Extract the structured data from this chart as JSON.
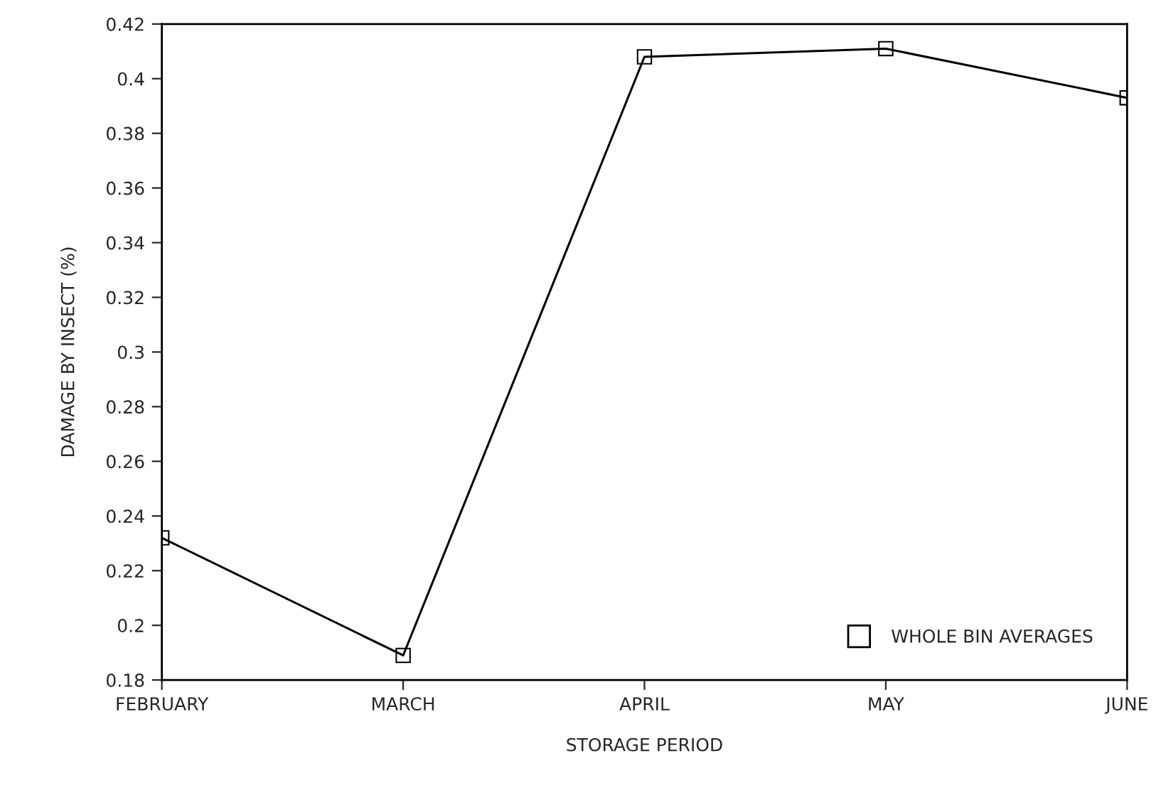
{
  "chart_data": {
    "type": "line",
    "xlabel": "STORAGE PERIOD",
    "ylabel": "DAMAGE BY INSECT (%)",
    "categories": [
      "FEBRUARY",
      "MARCH",
      "APRIL",
      "MAY",
      "JUNE"
    ],
    "series": [
      {
        "name": "WHOLE BIN AVERAGES",
        "color": "#000000",
        "values": [
          0.232,
          0.189,
          0.408,
          0.411,
          0.393
        ]
      }
    ],
    "ylim": [
      0.18,
      0.42
    ],
    "yticks": [
      0.18,
      0.2,
      0.22,
      0.24,
      0.26,
      0.28,
      0.3,
      0.32,
      0.34,
      0.36,
      0.38,
      0.4,
      0.42
    ],
    "marker": "square",
    "line_style": "solid",
    "grid": false,
    "legend": "bottom right"
  }
}
